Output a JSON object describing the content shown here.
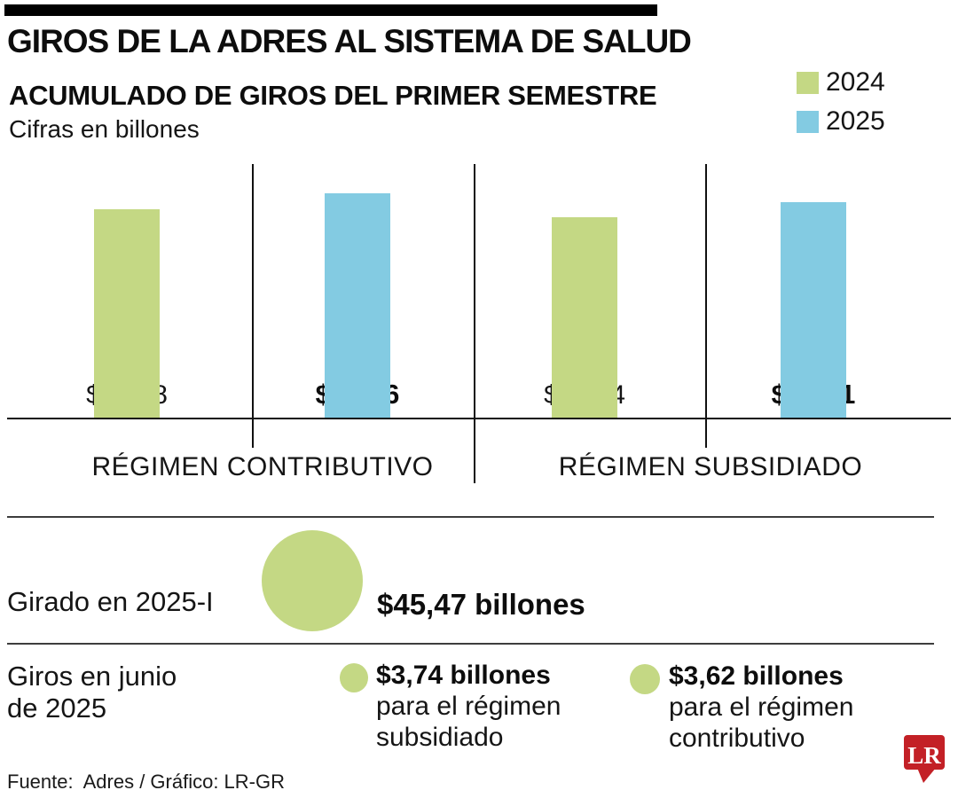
{
  "header": {
    "title": "GIROS DE LA ADRES AL SISTEMA DE SALUD",
    "subtitle": "ACUMULADO DE GIROS DEL PRIMER SEMESTRE",
    "units_note": "Cifras en billones"
  },
  "colors": {
    "green_2024": "#c4d884",
    "blue_2025": "#83cbe2",
    "logo_red": "#c32026",
    "logo_text_color": "#ffffff"
  },
  "chart_data": {
    "type": "bar",
    "title": "ACUMULADO DE GIROS DEL PRIMER SEMESTRE",
    "units": "Cifras en billones (COP)",
    "categories": [
      "RÉGIMEN CONTRIBUTIVO",
      "RÉGIMEN SUBSIDIADO"
    ],
    "series": [
      {
        "name": "2024",
        "color": "#c4d884",
        "values": [
          21.58,
          20.74
        ]
      },
      {
        "name": "2025",
        "color": "#83cbe2",
        "values": [
          23.16,
          22.31
        ]
      }
    ],
    "value_labels": [
      [
        "$21,58",
        "$20,74"
      ],
      [
        "$23,16",
        "$22,31"
      ]
    ],
    "ylim": [
      0,
      25
    ],
    "grid": false,
    "legend_position": "top-right"
  },
  "highlights": {
    "girado": {
      "label": "Girado en 2025-I",
      "value": "$45,47 billones"
    },
    "junio": {
      "label_line1": "Giros en junio",
      "label_line2": "de 2025",
      "items": [
        {
          "value": "$3,74 billones",
          "desc_line1": "para el régimen",
          "desc_line2": "subsidiado"
        },
        {
          "value": "$3,62 billones",
          "desc_line1": "para el régimen",
          "desc_line2": "contributivo"
        }
      ]
    }
  },
  "footer": {
    "source": "Fuente:  Adres / Gráfico: LR-GR",
    "logo_text": "LR"
  }
}
